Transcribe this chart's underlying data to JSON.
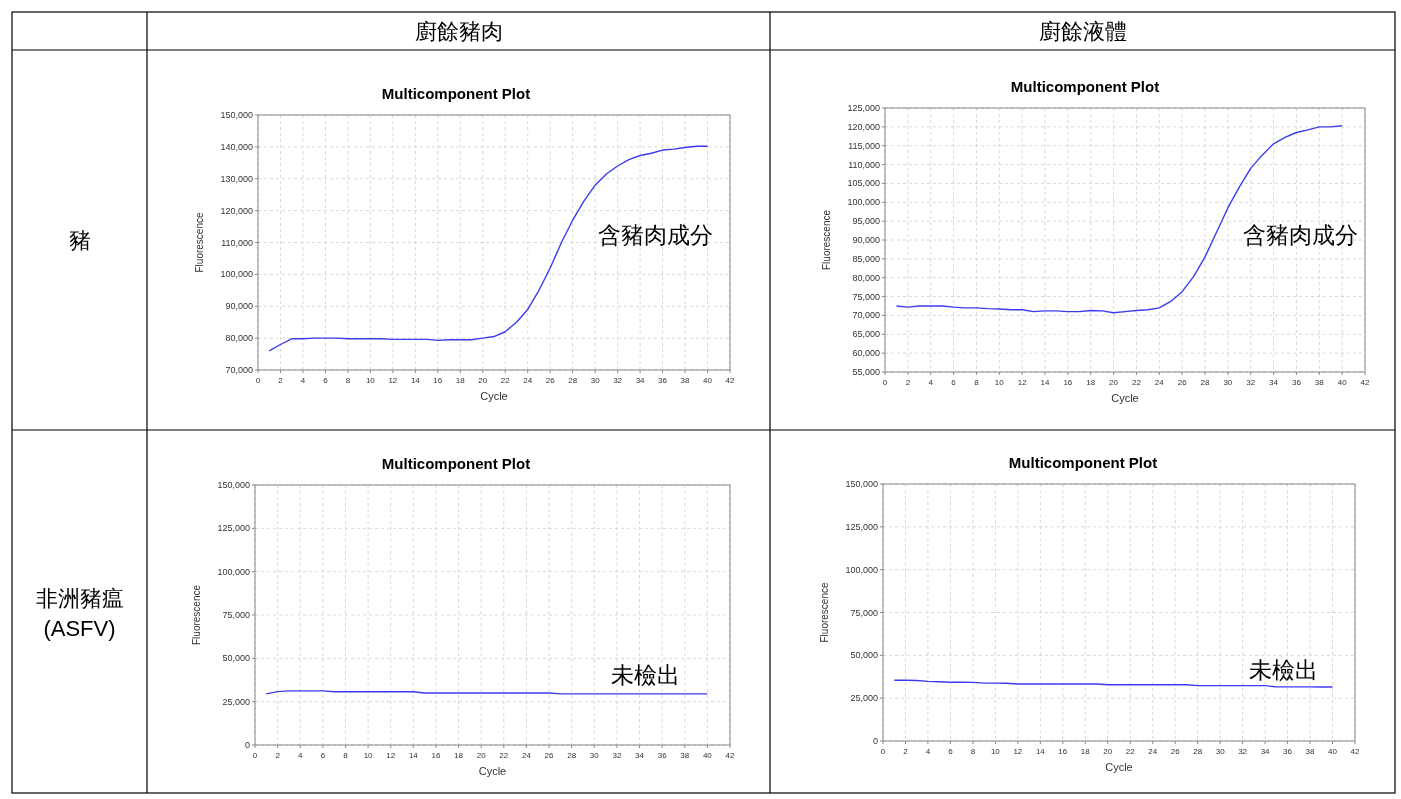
{
  "chart_data": [
    {
      "type": "other",
      "title": "廚餘豬肉"
    },
    {
      "type": "other",
      "title": "廚餘液體"
    },
    {
      "type": "other",
      "title": "豬"
    },
    {
      "type": "line",
      "title": "Multicomponent Plot",
      "xlabel": "Cycle",
      "ylabel": "Fluorescence",
      "color": "#3b3bf0",
      "grid": true,
      "annotations": [
        "含豬肉成分"
      ],
      "x": [
        1,
        2,
        3,
        4,
        5,
        6,
        7,
        8,
        9,
        10,
        11,
        12,
        13,
        14,
        15,
        16,
        17,
        18,
        19,
        20,
        21,
        22,
        23,
        24,
        25,
        26,
        27,
        28,
        29,
        30,
        31,
        32,
        33,
        34,
        35,
        36,
        37,
        38,
        39,
        40
      ],
      "values": [
        76000,
        78000,
        79800,
        79800,
        80000,
        80000,
        80000,
        79800,
        79800,
        79800,
        79800,
        79600,
        79600,
        79600,
        79600,
        79300,
        79500,
        79500,
        79500,
        80000,
        80500,
        82000,
        85000,
        89000,
        95000,
        102000,
        110000,
        117000,
        123000,
        128000,
        131500,
        134000,
        136000,
        137300,
        138000,
        139000,
        139300,
        139800,
        140200,
        140200
      ],
      "xlim": [
        0,
        42
      ],
      "xticks": [
        0,
        2,
        4,
        6,
        8,
        10,
        12,
        14,
        16,
        18,
        20,
        22,
        24,
        26,
        28,
        30,
        32,
        34,
        36,
        38,
        40,
        42
      ],
      "ylim": [
        70000,
        150000
      ],
      "yticks": [
        {
          "value": 70000,
          "label": "70,000"
        },
        {
          "value": 80000,
          "label": "80,000"
        },
        {
          "value": 90000,
          "label": "90,000"
        },
        {
          "value": 100000,
          "label": "100,000"
        },
        {
          "value": 110000,
          "label": "110,000"
        },
        {
          "value": 120000,
          "label": "120,000"
        },
        {
          "value": 130000,
          "label": "130,000"
        },
        {
          "value": 140000,
          "label": "140,000"
        },
        {
          "value": 150000,
          "label": "150,000"
        }
      ]
    },
    {
      "type": "line",
      "title": "Multicomponent Plot",
      "xlabel": "Cycle",
      "ylabel": "Fluorescence",
      "color": "#3b3bf0",
      "grid": true,
      "annotations": [
        "含豬肉成分"
      ],
      "x": [
        1,
        2,
        3,
        4,
        5,
        6,
        7,
        8,
        9,
        10,
        11,
        12,
        13,
        14,
        15,
        16,
        17,
        18,
        19,
        20,
        21,
        22,
        23,
        24,
        25,
        26,
        27,
        28,
        29,
        30,
        31,
        32,
        33,
        34,
        35,
        36,
        37,
        38,
        39,
        40
      ],
      "values": [
        72500,
        72200,
        72500,
        72500,
        72500,
        72200,
        72000,
        72000,
        71800,
        71700,
        71500,
        71500,
        71000,
        71200,
        71200,
        71000,
        71000,
        71300,
        71200,
        70700,
        71000,
        71300,
        71500,
        72000,
        73700,
        76300,
        80300,
        85500,
        92000,
        98500,
        104000,
        109000,
        112500,
        115500,
        117200,
        118500,
        119200,
        120000,
        120000,
        120300
      ],
      "xlim": [
        0,
        42
      ],
      "xticks": [
        0,
        2,
        4,
        6,
        8,
        10,
        12,
        14,
        16,
        18,
        20,
        22,
        24,
        26,
        28,
        30,
        32,
        34,
        36,
        38,
        40,
        42
      ],
      "ylim": [
        55000,
        125000
      ],
      "yticks": [
        {
          "value": 55000,
          "label": "55,000"
        },
        {
          "value": 60000,
          "label": "60,000"
        },
        {
          "value": 65000,
          "label": "65,000"
        },
        {
          "value": 70000,
          "label": "70,000"
        },
        {
          "value": 75000,
          "label": "75,000"
        },
        {
          "value": 80000,
          "label": "80,000"
        },
        {
          "value": 85000,
          "label": "85,000"
        },
        {
          "value": 90000,
          "label": "90,000"
        },
        {
          "value": 95000,
          "label": "95,000"
        },
        {
          "value": 100000,
          "label": "100,000"
        },
        {
          "value": 105000,
          "label": "105,000"
        },
        {
          "value": 110000,
          "label": "110,000"
        },
        {
          "value": 115000,
          "label": "115,000"
        },
        {
          "value": 120000,
          "label": "120,000"
        },
        {
          "value": 125000,
          "label": "125,000"
        }
      ]
    },
    {
      "type": "other",
      "title": "非洲豬瘟",
      "subtitle": "(ASFV)"
    },
    {
      "type": "line",
      "title": "Multicomponent Plot",
      "xlabel": "Cycle",
      "ylabel": "Fluorescence",
      "color": "#3b3bf0",
      "grid": true,
      "annotations": [
        "未檢出"
      ],
      "x": [
        1,
        2,
        3,
        4,
        5,
        6,
        7,
        8,
        9,
        10,
        11,
        12,
        13,
        14,
        15,
        16,
        17,
        18,
        19,
        20,
        21,
        22,
        23,
        24,
        25,
        26,
        27,
        28,
        29,
        30,
        31,
        32,
        33,
        34,
        35,
        36,
        37,
        38,
        39,
        40
      ],
      "values": [
        29500,
        30800,
        31200,
        31200,
        31200,
        31200,
        30700,
        30700,
        30700,
        30700,
        30700,
        30700,
        30700,
        30700,
        30000,
        30000,
        30000,
        30000,
        30000,
        30000,
        30000,
        30000,
        30000,
        30000,
        30000,
        30000,
        29500,
        29500,
        29500,
        29500,
        29500,
        29500,
        29500,
        29500,
        29500,
        29500,
        29500,
        29500,
        29500,
        29500
      ],
      "xlim": [
        0,
        42
      ],
      "xticks": [
        0,
        2,
        4,
        6,
        8,
        10,
        12,
        14,
        16,
        18,
        20,
        22,
        24,
        26,
        28,
        30,
        32,
        34,
        36,
        38,
        40,
        42
      ],
      "ylim": [
        0,
        150000
      ],
      "yticks": [
        0,
        {
          "value": 25000,
          "label": "25,000"
        },
        {
          "value": 50000,
          "label": "50,000"
        },
        {
          "value": 75000,
          "label": "75,000"
        },
        {
          "value": 100000,
          "label": "100,000"
        },
        {
          "value": 125000,
          "label": "125,000"
        },
        {
          "value": 150000,
          "label": "150,000"
        }
      ]
    },
    {
      "type": "line",
      "title": "Multicomponent Plot",
      "xlabel": "Cycle",
      "ylabel": "Fluorescence",
      "color": "#3b3bf0",
      "grid": true,
      "annotations": [
        "未檢出"
      ],
      "x": [
        1,
        2,
        3,
        4,
        5,
        6,
        7,
        8,
        9,
        10,
        11,
        12,
        13,
        14,
        15,
        16,
        17,
        18,
        19,
        20,
        21,
        22,
        23,
        24,
        25,
        26,
        27,
        28,
        29,
        30,
        31,
        32,
        33,
        34,
        35,
        36,
        37,
        38,
        39,
        40
      ],
      "values": [
        35500,
        35500,
        35300,
        34800,
        34600,
        34300,
        34300,
        34200,
        33800,
        33800,
        33700,
        33300,
        33300,
        33300,
        33300,
        33300,
        33300,
        33300,
        33300,
        32800,
        32800,
        32800,
        32800,
        32800,
        32800,
        32800,
        32800,
        32300,
        32300,
        32300,
        32300,
        32300,
        32300,
        32300,
        31600,
        31600,
        31600,
        31600,
        31500,
        31500
      ],
      "xlim": [
        0,
        42
      ],
      "xticks": [
        0,
        2,
        4,
        6,
        8,
        10,
        12,
        14,
        16,
        18,
        20,
        22,
        24,
        26,
        28,
        30,
        32,
        34,
        36,
        38,
        40,
        42
      ],
      "ylim": [
        0,
        150000
      ],
      "yticks": [
        0,
        {
          "value": 25000,
          "label": "25,000"
        },
        {
          "value": 50000,
          "label": "50,000"
        },
        {
          "value": 75000,
          "label": "75,000"
        },
        {
          "value": 100000,
          "label": "100,000"
        },
        {
          "value": 125000,
          "label": "125,000"
        },
        {
          "value": 150000,
          "label": "150,000"
        }
      ]
    }
  ]
}
